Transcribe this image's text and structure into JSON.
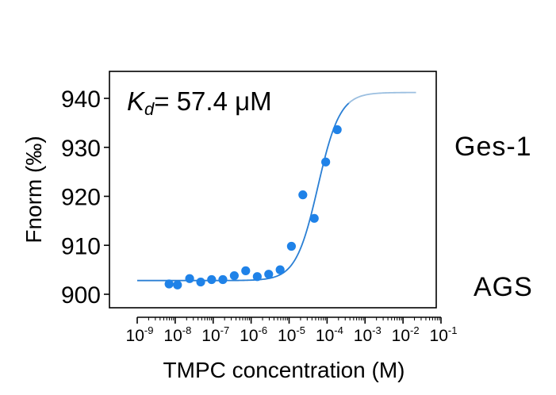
{
  "chart_data": {
    "type": "scatter",
    "annotation": {
      "symbol": "K",
      "subscript": "d",
      "text": "= 57.4 μM"
    },
    "xlabel": "TMPC concentration (M)",
    "ylabel": "Fnorm (‰)",
    "x_scale": "log",
    "xlim": [
      1e-09,
      0.1
    ],
    "ylim": [
      898,
      945
    ],
    "x_ticks": [
      {
        "base": "10",
        "exp": "-9"
      },
      {
        "base": "10",
        "exp": "-8"
      },
      {
        "base": "10",
        "exp": "-7"
      },
      {
        "base": "10",
        "exp": "-6"
      },
      {
        "base": "10",
        "exp": "-5"
      },
      {
        "base": "10",
        "exp": "-4"
      },
      {
        "base": "10",
        "exp": "-3"
      },
      {
        "base": "10",
        "exp": "-2"
      },
      {
        "base": "10",
        "exp": "-1"
      }
    ],
    "y_ticks": [
      900,
      910,
      920,
      930,
      940
    ],
    "points": [
      {
        "x": 6.9e-09,
        "y": 902.1
      },
      {
        "x": 1.15e-08,
        "y": 901.9
      },
      {
        "x": 2.4e-08,
        "y": 903.2
      },
      {
        "x": 4.7e-08,
        "y": 902.5
      },
      {
        "x": 9.1e-08,
        "y": 903.0
      },
      {
        "x": 1.8e-07,
        "y": 903.0
      },
      {
        "x": 3.6e-07,
        "y": 903.8
      },
      {
        "x": 7.2e-07,
        "y": 904.8
      },
      {
        "x": 1.45e-06,
        "y": 903.6
      },
      {
        "x": 2.9e-06,
        "y": 904.1
      },
      {
        "x": 5.8e-06,
        "y": 905.0
      },
      {
        "x": 1.15e-05,
        "y": 909.8
      },
      {
        "x": 2.3e-05,
        "y": 920.3
      },
      {
        "x": 4.6e-05,
        "y": 915.5
      },
      {
        "x": 9.2e-05,
        "y": 927.0
      },
      {
        "x": 0.000185,
        "y": 933.6
      }
    ],
    "fit": {
      "kd": 5.74e-05,
      "bottom": 902.8,
      "top": 941.2,
      "hill": 1.5,
      "x_start": 1e-09,
      "x_end": 0.022
    },
    "colors": {
      "points": "#1f82e8",
      "fit": "#2a7fd4",
      "fit_faded": "#9bbfe0"
    }
  },
  "side_labels": {
    "top": "Ges-1",
    "bottom": "AGS"
  }
}
